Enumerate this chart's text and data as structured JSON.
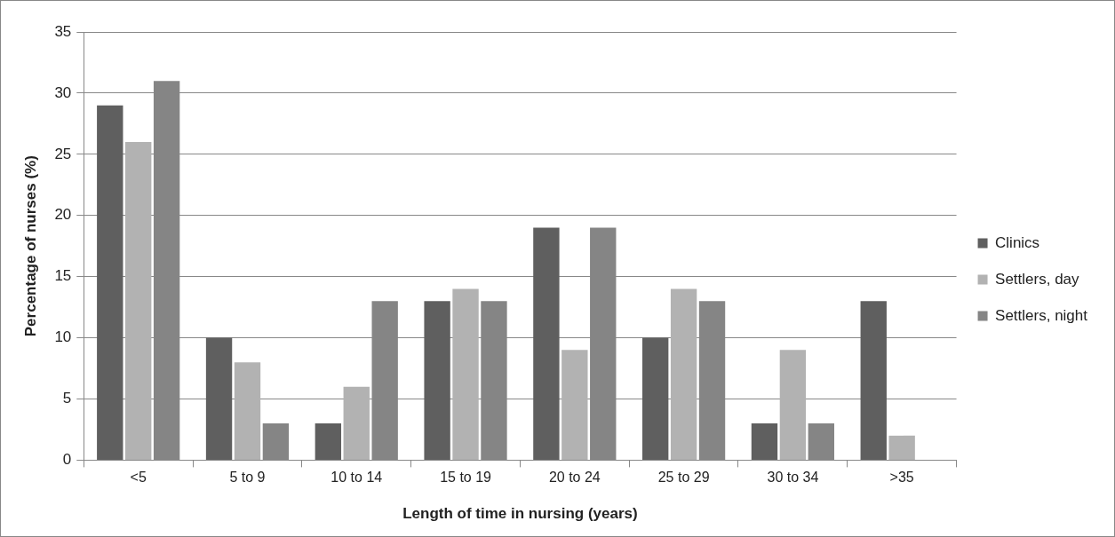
{
  "chart_data": {
    "type": "bar",
    "xlabel": "Length of time in nursing (years)",
    "ylabel": "Percentage of nurses (%)",
    "categories": [
      "<5",
      "5 to 9",
      "10 to 14",
      "15 to 19",
      "20 to 24",
      "25 to 29",
      "30 to 34",
      ">35"
    ],
    "series": [
      {
        "name": "Clinics",
        "color": "#5f5f5f",
        "values": [
          29,
          10,
          3,
          13,
          19,
          10,
          3,
          13
        ]
      },
      {
        "name": "Settlers, day",
        "color": "#b2b2b2",
        "values": [
          26,
          8,
          6,
          14,
          9,
          14,
          9,
          2
        ]
      },
      {
        "name": "Settlers, night",
        "color": "#858585",
        "values": [
          31,
          3,
          13,
          13,
          19,
          13,
          3,
          null
        ]
      }
    ],
    "ylim": [
      0,
      35
    ],
    "yticks": [
      0,
      5,
      10,
      15,
      20,
      25,
      30,
      35
    ],
    "grid": "y",
    "legend": "right"
  }
}
